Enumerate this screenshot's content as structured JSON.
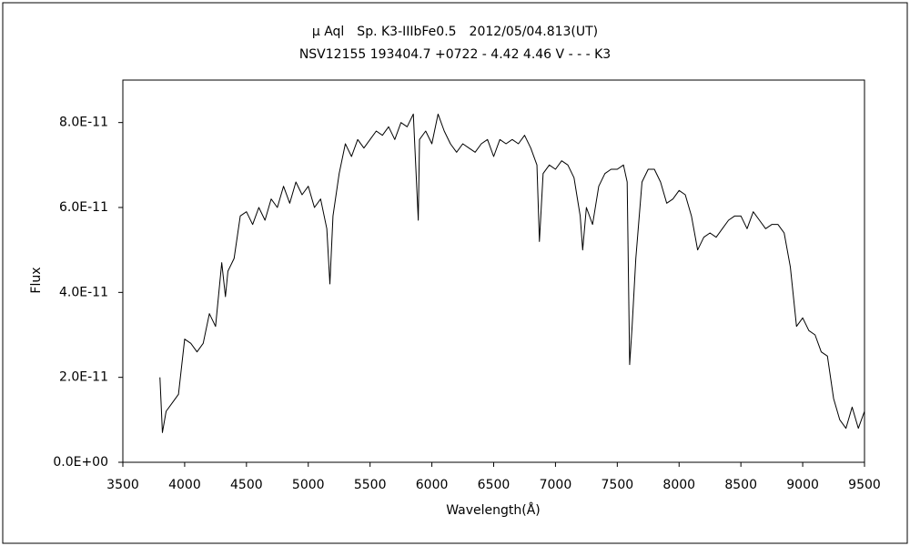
{
  "chart_data": {
    "type": "line",
    "title": "μ Aql　Sp. K3-IIIbFe0.5　2012/05/04.813(UT)",
    "subtitle": "NSV12155 193404.7 +0722 - 4.42 4.46 V - - - K3",
    "x_label": "Wavelength(Å)",
    "y_label": "Flux",
    "xlim": [
      3500,
      9500
    ],
    "xticks": [
      3500,
      4000,
      4500,
      5000,
      5500,
      6000,
      6500,
      7000,
      7500,
      8000,
      8500,
      9000,
      9500
    ],
    "ylim": [
      0,
      9e-11
    ],
    "yticks": [
      {
        "value": 0,
        "label": "0.0E+00"
      },
      {
        "value": 2e-11,
        "label": "2.0E-11"
      },
      {
        "value": 4e-11,
        "label": "4.0E-11"
      },
      {
        "value": 6e-11,
        "label": "6.0E-11"
      },
      {
        "value": 8e-11,
        "label": "8.0E-11"
      }
    ],
    "grid": false,
    "series": [
      {
        "color": "#000000",
        "x": [
          3800,
          3820,
          3850,
          3900,
          3950,
          4000,
          4050,
          4100,
          4150,
          4200,
          4250,
          4300,
          4330,
          4350,
          4400,
          4450,
          4500,
          4550,
          4600,
          4650,
          4700,
          4750,
          4800,
          4850,
          4900,
          4950,
          5000,
          5050,
          5100,
          5150,
          5175,
          5200,
          5250,
          5300,
          5350,
          5400,
          5450,
          5500,
          5550,
          5600,
          5650,
          5700,
          5750,
          5800,
          5850,
          5890,
          5900,
          5950,
          6000,
          6050,
          6100,
          6150,
          6200,
          6250,
          6300,
          6350,
          6400,
          6450,
          6500,
          6550,
          6600,
          6650,
          6700,
          6750,
          6800,
          6850,
          6870,
          6900,
          6950,
          7000,
          7050,
          7100,
          7150,
          7200,
          7220,
          7250,
          7300,
          7350,
          7400,
          7450,
          7500,
          7550,
          7580,
          7600,
          7620,
          7650,
          7700,
          7750,
          7800,
          7850,
          7900,
          7950,
          8000,
          8050,
          8100,
          8150,
          8200,
          8250,
          8300,
          8350,
          8400,
          8450,
          8500,
          8550,
          8600,
          8650,
          8700,
          8750,
          8800,
          8850,
          8900,
          8950,
          9000,
          9050,
          9100,
          9150,
          9200,
          9250,
          9300,
          9350,
          9400,
          9450,
          9500
        ],
        "values": [
          2e-11,
          7e-12,
          1.2e-11,
          1.4e-11,
          1.6e-11,
          2.9e-11,
          2.8e-11,
          2.6e-11,
          2.8e-11,
          3.5e-11,
          3.2e-11,
          4.7e-11,
          3.9e-11,
          4.5e-11,
          4.8e-11,
          5.8e-11,
          5.9e-11,
          5.6e-11,
          6e-11,
          5.7e-11,
          6.2e-11,
          6e-11,
          6.5e-11,
          6.1e-11,
          6.6e-11,
          6.3e-11,
          6.5e-11,
          6e-11,
          6.2e-11,
          5.5e-11,
          4.2e-11,
          5.8e-11,
          6.8e-11,
          7.5e-11,
          7.2e-11,
          7.6e-11,
          7.4e-11,
          7.6e-11,
          7.8e-11,
          7.7e-11,
          7.9e-11,
          7.6e-11,
          8e-11,
          7.9e-11,
          8.2e-11,
          5.7e-11,
          7.6e-11,
          7.8e-11,
          7.5e-11,
          8.2e-11,
          7.8e-11,
          7.5e-11,
          7.3e-11,
          7.5e-11,
          7.4e-11,
          7.3e-11,
          7.5e-11,
          7.6e-11,
          7.2e-11,
          7.6e-11,
          7.5e-11,
          7.6e-11,
          7.5e-11,
          7.7e-11,
          7.4e-11,
          7e-11,
          5.2e-11,
          6.8e-11,
          7e-11,
          6.9e-11,
          7.1e-11,
          7e-11,
          6.7e-11,
          5.8e-11,
          5e-11,
          6e-11,
          5.6e-11,
          6.5e-11,
          6.8e-11,
          6.9e-11,
          6.9e-11,
          7e-11,
          6.6e-11,
          2.3e-11,
          3.2e-11,
          4.8e-11,
          6.6e-11,
          6.9e-11,
          6.9e-11,
          6.6e-11,
          6.1e-11,
          6.2e-11,
          6.4e-11,
          6.3e-11,
          5.8e-11,
          5e-11,
          5.3e-11,
          5.4e-11,
          5.3e-11,
          5.5e-11,
          5.7e-11,
          5.8e-11,
          5.8e-11,
          5.5e-11,
          5.9e-11,
          5.7e-11,
          5.5e-11,
          5.6e-11,
          5.6e-11,
          5.4e-11,
          4.6e-11,
          3.2e-11,
          3.4e-11,
          3.1e-11,
          3e-11,
          2.6e-11,
          2.5e-11,
          1.5e-11,
          1e-11,
          8e-12,
          1.3e-11,
          8e-12,
          1.2e-11
        ]
      }
    ]
  }
}
